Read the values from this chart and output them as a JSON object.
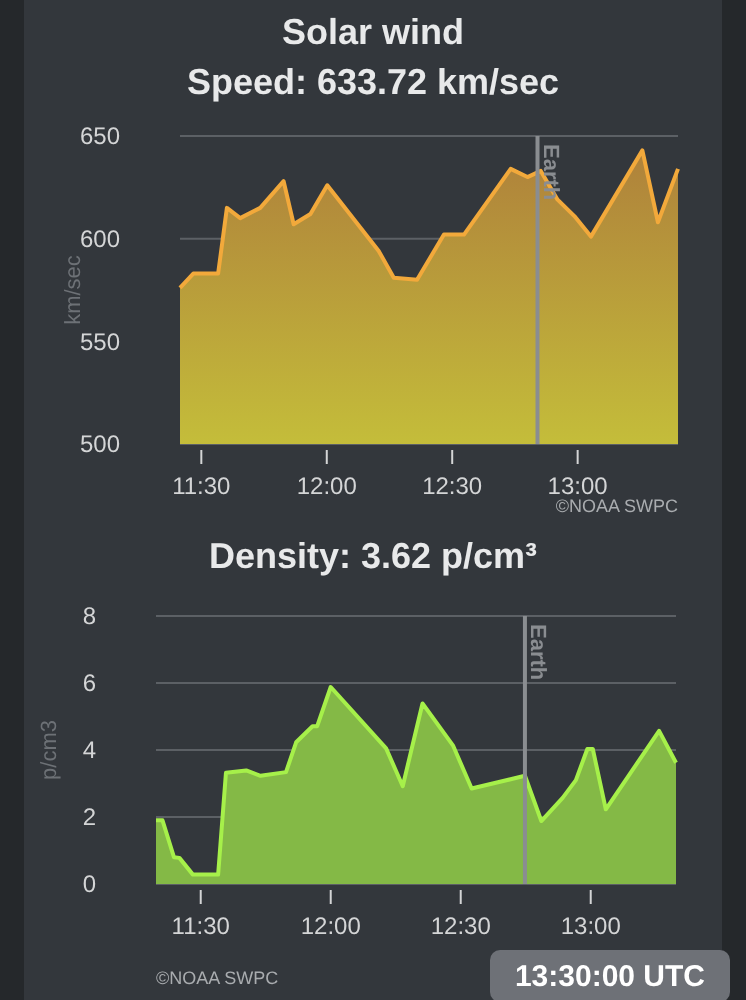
{
  "chart_data": [
    {
      "type": "area",
      "title": "Solar wind",
      "subtitle": "Speed: 633.72 km/sec",
      "ylabel": "km/sec",
      "x": [
        11.415,
        11.468,
        11.567,
        11.602,
        11.655,
        11.735,
        11.828,
        11.868,
        11.935,
        12.002,
        12.207,
        12.267,
        12.36,
        12.467,
        12.547,
        12.733,
        12.8,
        12.853,
        12.92,
        12.987,
        13.053,
        13.258,
        13.32,
        13.4
      ],
      "series": [
        {
          "color": "#f2a93b",
          "values": [
            576,
            583,
            583,
            615,
            610,
            615,
            628,
            607,
            612,
            626,
            594,
            581,
            580,
            602,
            602,
            634,
            630,
            633,
            619,
            611,
            601,
            643,
            608,
            634
          ]
        }
      ],
      "xlim": [
        11.415,
        13.4
      ],
      "xticks": [
        {
          "value": 11.5,
          "label": "11:30"
        },
        {
          "value": 12,
          "label": "12:00"
        },
        {
          "value": 12.5,
          "label": "12:30"
        },
        {
          "value": 13,
          "label": "13:00"
        }
      ],
      "ylim": [
        500,
        650
      ],
      "yticks": [
        500,
        550,
        600,
        650
      ],
      "grid": "y",
      "ref_lines": [
        {
          "axis": "x",
          "value": 12.84,
          "label": "Earth",
          "color": "#8a8d91"
        }
      ],
      "annotations": [
        "©NOAA SWPC"
      ]
    },
    {
      "type": "area",
      "title": "Density: 3.62 p/cm³",
      "ylabel": "p/cm3",
      "x": [
        11.328,
        11.353,
        11.397,
        11.418,
        11.47,
        11.567,
        11.597,
        11.675,
        11.73,
        11.828,
        11.867,
        11.93,
        11.948,
        12.0,
        12.213,
        12.277,
        12.353,
        12.47,
        12.542,
        12.747,
        12.81,
        12.892,
        12.943,
        12.987,
        13.008,
        13.058,
        13.263,
        13.328
      ],
      "series": [
        {
          "color": "#a6f04a",
          "values": [
            1.9,
            1.9,
            0.8,
            0.78,
            0.28,
            0.28,
            3.32,
            3.39,
            3.23,
            3.34,
            4.23,
            4.71,
            4.71,
            5.88,
            4.05,
            2.92,
            5.39,
            4.14,
            2.85,
            3.23,
            1.88,
            2.57,
            3.1,
            4.03,
            4.03,
            2.23,
            4.57,
            3.62
          ]
        }
      ],
      "xlim": [
        11.328,
        13.328
      ],
      "xticks": [
        {
          "value": 11.5,
          "label": "11:30"
        },
        {
          "value": 12,
          "label": "12:00"
        },
        {
          "value": 12.5,
          "label": "12:30"
        },
        {
          "value": 13,
          "label": "13:00"
        }
      ],
      "ylim": [
        0,
        8
      ],
      "yticks": [
        0,
        2,
        4,
        6,
        8
      ],
      "grid": "y",
      "ref_lines": [
        {
          "axis": "x",
          "value": 12.747,
          "label": "Earth",
          "color": "#8a8d91"
        }
      ],
      "annotations": [
        "13:30:00 UTC",
        "©NOAA SWPC"
      ]
    }
  ]
}
